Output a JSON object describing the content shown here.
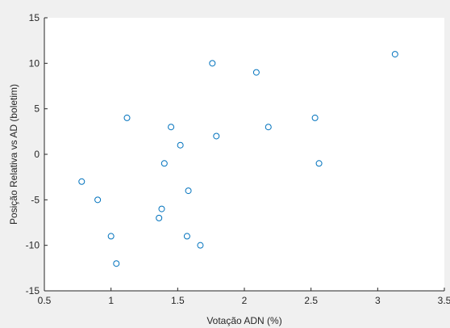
{
  "chart_data": {
    "type": "scatter",
    "title": "",
    "xlabel": "Votação ADN (%)",
    "ylabel": "Posição Relativa vs AD (boletim)",
    "xlim": [
      0.5,
      3.5
    ],
    "ylim": [
      -15,
      15
    ],
    "grid": false,
    "box": false,
    "marker_color": "#0072bd",
    "plot_background": "#ffffff",
    "figure_background": "#f0f0f0",
    "x_ticks": [
      0.5,
      1,
      1.5,
      2,
      2.5,
      3,
      3.5
    ],
    "x_tick_labels": [
      "0.5",
      "1",
      "1.5",
      "2",
      "2.5",
      "3",
      "3.5"
    ],
    "y_ticks": [
      -15,
      -10,
      -5,
      0,
      5,
      10,
      15
    ],
    "y_tick_labels": [
      "-15",
      "-10",
      "-5",
      "0",
      "5",
      "10",
      "15"
    ],
    "points": [
      {
        "x": 0.78,
        "y": -3
      },
      {
        "x": 0.9,
        "y": -5
      },
      {
        "x": 1.0,
        "y": -9
      },
      {
        "x": 1.04,
        "y": -12
      },
      {
        "x": 1.12,
        "y": 4
      },
      {
        "x": 1.36,
        "y": -7
      },
      {
        "x": 1.38,
        "y": -6
      },
      {
        "x": 1.4,
        "y": -1
      },
      {
        "x": 1.45,
        "y": 3
      },
      {
        "x": 1.52,
        "y": 1
      },
      {
        "x": 1.57,
        "y": -9
      },
      {
        "x": 1.58,
        "y": -4
      },
      {
        "x": 1.67,
        "y": -10
      },
      {
        "x": 1.76,
        "y": 10
      },
      {
        "x": 1.79,
        "y": 2
      },
      {
        "x": 2.09,
        "y": 9
      },
      {
        "x": 2.18,
        "y": 3
      },
      {
        "x": 2.53,
        "y": 4
      },
      {
        "x": 2.56,
        "y": -1
      },
      {
        "x": 3.13,
        "y": 11
      }
    ]
  }
}
